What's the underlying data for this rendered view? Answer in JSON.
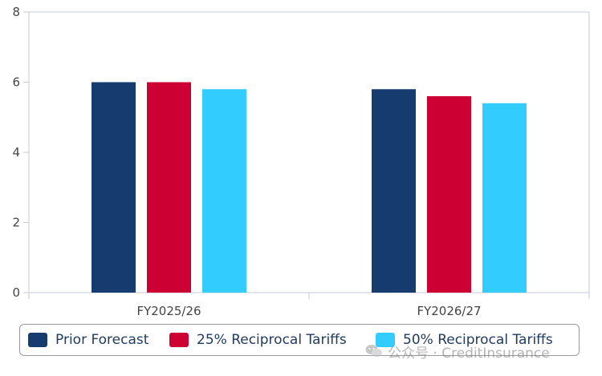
{
  "chart_data": {
    "type": "bar",
    "categories": [
      "FY2025/26",
      "FY2026/27"
    ],
    "series": [
      {
        "name": "Prior Forecast",
        "values": [
          6.0,
          5.8
        ],
        "color": "#163b6e"
      },
      {
        "name": "25% Reciprocal Tariffs",
        "values": [
          6.0,
          5.6
        ],
        "color": "#cc0033"
      },
      {
        "name": "50% Reciprocal Tariffs",
        "values": [
          5.8,
          5.4
        ],
        "color": "#33ccff"
      }
    ],
    "ylim": [
      0,
      8
    ],
    "yticks": [
      "0",
      "2",
      "4",
      "6",
      "8"
    ],
    "grid": false,
    "legend_position": "bottom",
    "axis_color": "#c3cad6"
  },
  "watermark": {
    "text": "公众号 · CreditInsurance",
    "icon": "wechat-icon"
  }
}
